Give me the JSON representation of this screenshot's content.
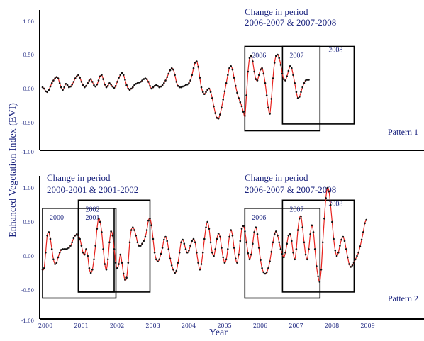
{
  "ylabel": "Enhanced Vegetation Index (EVI)",
  "xlabel": "Year",
  "chart_data": [
    {
      "type": "line",
      "panel_label": "Pattern 1",
      "annotation_title": [
        "Change in period",
        "2006-2007 & 2007-2008"
      ],
      "ylim": [
        -1.0,
        1.0
      ],
      "yticks": [
        "1.00",
        "0.50",
        "0.00",
        "-0.50",
        "-1.00"
      ],
      "x_start": 2000.0,
      "x_end": 2010.0,
      "points_per_year": 23,
      "series": [
        {
          "values": [
            0.02,
            0.0,
            -0.04,
            -0.05,
            -0.02,
            0.03,
            0.08,
            0.12,
            0.15,
            0.17,
            0.15,
            0.08,
            0.02,
            -0.02,
            0.02,
            0.07,
            0.05,
            0.02,
            0.03,
            0.06,
            0.1,
            0.15,
            0.18,
            0.2,
            0.16,
            0.1,
            0.05,
            0.02,
            0.04,
            0.08,
            0.12,
            0.14,
            0.1,
            0.05,
            0.03,
            0.06,
            0.12,
            0.18,
            0.2,
            0.14,
            0.06,
            0.02,
            0.04,
            0.08,
            0.06,
            0.03,
            0.01,
            0.04,
            0.1,
            0.16,
            0.2,
            0.23,
            0.2,
            0.13,
            0.05,
            0.0,
            -0.02,
            0.0,
            0.02,
            0.05,
            0.07,
            0.08,
            0.09,
            0.1,
            0.12,
            0.14,
            0.15,
            0.14,
            0.1,
            0.04,
            0.0,
            0.02,
            0.04,
            0.05,
            0.04,
            0.02,
            0.03,
            0.05,
            0.08,
            0.12,
            0.17,
            0.22,
            0.27,
            0.3,
            0.28,
            0.2,
            0.1,
            0.04,
            0.02,
            0.02,
            0.03,
            0.04,
            0.05,
            0.06,
            0.08,
            0.12,
            0.2,
            0.3,
            0.38,
            0.4,
            0.32,
            0.16,
            0.02,
            -0.05,
            -0.08,
            -0.05,
            -0.02,
            0.0,
            -0.05,
            -0.14,
            -0.26,
            -0.36,
            -0.43,
            -0.44,
            -0.38,
            -0.28,
            -0.16,
            -0.04,
            0.08,
            0.2,
            0.3,
            0.33,
            0.28,
            0.16,
            0.04,
            -0.06,
            -0.14,
            -0.2,
            -0.26,
            -0.34,
            -0.4,
            -0.1,
            0.25,
            0.45,
            0.48,
            0.4,
            0.25,
            0.14,
            0.12,
            0.2,
            0.28,
            0.3,
            0.22,
            0.08,
            -0.1,
            -0.28,
            -0.37,
            -0.15,
            0.15,
            0.38,
            0.48,
            0.5,
            0.45,
            0.35,
            0.22,
            0.14,
            0.12,
            0.18,
            0.26,
            0.33,
            0.3,
            0.2,
            0.08,
            -0.05,
            -0.14,
            -0.12,
            -0.05,
            0.02,
            0.08,
            0.12,
            0.13,
            0.13
          ]
        }
      ],
      "boxes": [
        {
          "label": "2006",
          "x0": 2005.65,
          "x1": 2007.75,
          "y0": 0.62,
          "y1": -0.62
        },
        {
          "label": "2007",
          "x0": 2006.7,
          "x1": 2008.7,
          "y0": 0.62,
          "y1": -0.52
        },
        {
          "label": "2008",
          "x0": 2006.7,
          "x1": 2008.7,
          "y0": 0.62,
          "y1": -0.52
        }
      ]
    },
    {
      "type": "line",
      "panel_label": "Pattern 2",
      "annotation_title_left": [
        "Change in period",
        "2000-2001 & 2001-2002"
      ],
      "annotation_title_right": [
        "Change in period",
        "2006-2007 & 2007-2008"
      ],
      "ylim": [
        -1.0,
        1.0
      ],
      "yticks": [
        "1.00",
        "0.50",
        "0.00",
        "-0.50",
        "-1.00"
      ],
      "x_start": 2000.0,
      "x_end": 2010.0,
      "points_per_year": 23,
      "xtick_labels": [
        "2000",
        "2001",
        "2002",
        "2003",
        "2004",
        "2005",
        "2006",
        "2007",
        "2008",
        "2009"
      ],
      "series": [
        {
          "values": [
            -0.2,
            -0.18,
            0.05,
            0.3,
            0.35,
            0.25,
            0.1,
            -0.05,
            -0.12,
            -0.1,
            -0.02,
            0.05,
            0.09,
            0.1,
            0.1,
            0.1,
            0.11,
            0.12,
            0.15,
            0.2,
            0.26,
            0.3,
            0.32,
            0.3,
            0.25,
            0.15,
            0.05,
            0.02,
            0.1,
            0.0,
            -0.18,
            -0.25,
            -0.2,
            -0.05,
            0.15,
            0.4,
            0.55,
            0.5,
            0.35,
            0.1,
            -0.12,
            -0.2,
            -0.05,
            0.2,
            0.36,
            0.3,
            0.1,
            -0.1,
            -0.18,
            -0.12,
            0.02,
            -0.1,
            -0.26,
            -0.35,
            -0.32,
            -0.1,
            0.2,
            0.38,
            0.42,
            0.38,
            0.3,
            0.2,
            0.15,
            0.15,
            0.18,
            0.22,
            0.28,
            0.38,
            0.52,
            0.55,
            0.45,
            0.25,
            0.05,
            -0.05,
            -0.08,
            -0.05,
            0.03,
            0.12,
            0.24,
            0.28,
            0.22,
            0.1,
            -0.04,
            -0.14,
            -0.2,
            -0.25,
            -0.22,
            -0.1,
            0.05,
            0.2,
            0.24,
            0.18,
            0.1,
            0.05,
            0.08,
            0.15,
            0.22,
            0.25,
            0.2,
            0.05,
            -0.1,
            -0.2,
            -0.12,
            0.05,
            0.25,
            0.42,
            0.5,
            0.4,
            0.2,
            0.05,
            0.0,
            0.1,
            0.25,
            0.33,
            0.28,
            0.12,
            -0.02,
            -0.1,
            -0.05,
            0.1,
            0.28,
            0.38,
            0.3,
            0.12,
            -0.04,
            -0.1,
            0.02,
            0.22,
            0.4,
            0.44,
            0.36,
            0.2,
            0.04,
            -0.05,
            0.02,
            0.18,
            0.35,
            0.42,
            0.32,
            0.12,
            -0.06,
            -0.18,
            -0.24,
            -0.26,
            -0.24,
            -0.18,
            -0.08,
            0.06,
            0.2,
            0.32,
            0.36,
            0.3,
            0.2,
            0.1,
            0.03,
            -0.02,
            0.05,
            0.18,
            0.3,
            0.32,
            0.22,
            0.05,
            -0.05,
            0.1,
            0.38,
            0.55,
            0.58,
            0.42,
            0.2,
            0.02,
            -0.05,
            0.1,
            0.32,
            0.45,
            0.35,
            0.1,
            -0.15,
            -0.3,
            -0.38,
            -0.2,
            0.2,
            0.55,
            0.85,
            1.0,
            0.95,
            0.75,
            0.5,
            0.25,
            0.08,
            0.0,
            0.05,
            0.15,
            0.24,
            0.28,
            0.22,
            0.1,
            -0.02,
            -0.12,
            -0.16,
            -0.14,
            -0.1,
            -0.05,
            0.0,
            0.05,
            0.14,
            0.24,
            0.35,
            0.48,
            0.53
          ]
        }
      ],
      "boxes": [
        {
          "label": "2000",
          "x0": 2000.0,
          "x1": 2002.05,
          "y0": 0.7,
          "y1": -0.62
        },
        {
          "label": "2001",
          "x0": 2001.0,
          "x1": 2002.0,
          "y0": 0.7,
          "y1": -0.53
        },
        {
          "label": "2002",
          "x0": 2001.0,
          "x1": 2003.0,
          "y0": 0.82,
          "y1": -0.53
        },
        {
          "label": "2006",
          "x0": 2005.65,
          "x1": 2007.75,
          "y0": 0.7,
          "y1": -0.62
        },
        {
          "label": "2007",
          "x0": 2006.7,
          "x1": 2008.7,
          "y0": 0.82,
          "y1": -0.53
        },
        {
          "label": "2008",
          "x0": 2006.7,
          "x1": 2008.7,
          "y0": 0.82,
          "y1": -0.53
        }
      ]
    }
  ]
}
